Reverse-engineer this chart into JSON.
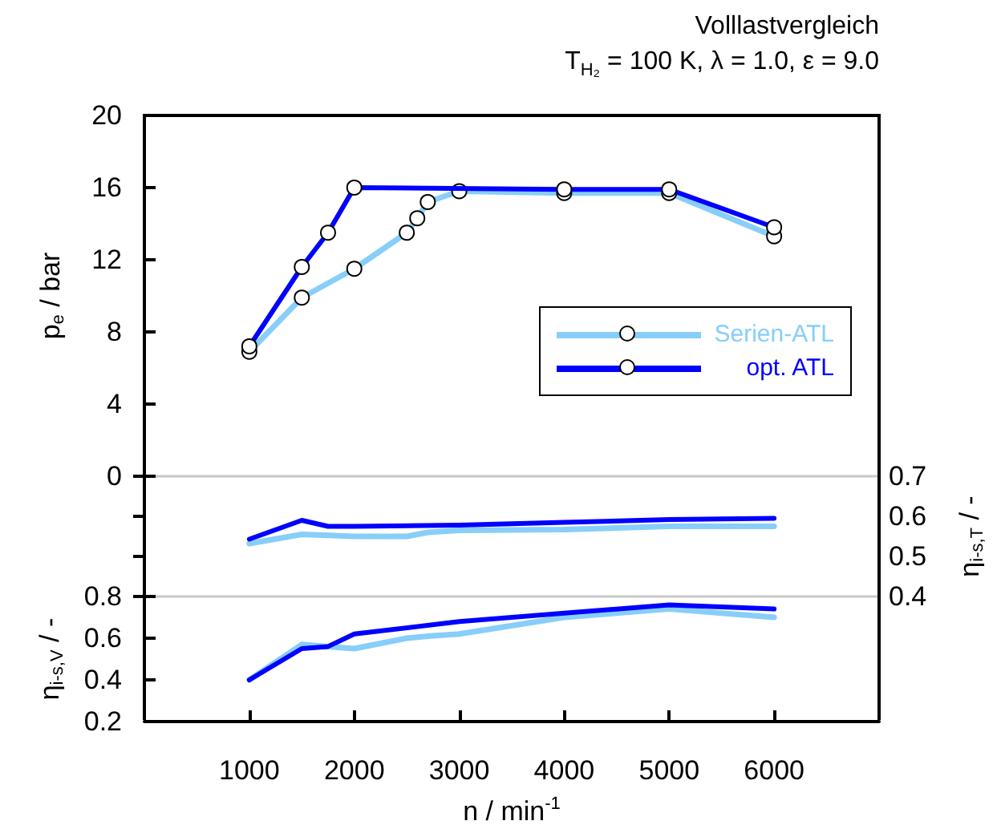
{
  "chart_data": [
    {
      "type": "line",
      "title": "Volllastvergleich",
      "subtitle": "T$_{H₂}$ = 100 K, λ = 1.0, ε = 9.0",
      "ylabel": "p$_{e}$ / bar",
      "xlim": [
        0,
        7000
      ],
      "xticks": [
        1000,
        2000,
        3000,
        4000,
        5000,
        6000
      ],
      "ylim": [
        0,
        20
      ],
      "yticks": [
        0,
        4,
        8,
        12,
        16,
        20
      ],
      "tick_labels": "y",
      "legend": "bottom right",
      "marker": "circle",
      "line_style": "solid",
      "series": [
        {
          "name": "Serien-ATL",
          "color": "#87cefa",
          "x": [
            1000,
            1500,
            2000,
            2500,
            2600,
            2700,
            3000,
            4000,
            5000,
            6000
          ],
          "values": [
            6.9,
            9.9,
            11.5,
            13.5,
            14.3,
            15.2,
            15.8,
            15.7,
            15.7,
            13.3
          ]
        },
        {
          "name": "opt. ATL",
          "color": "#0000ff",
          "x": [
            1000,
            1500,
            1750,
            2000,
            4000,
            5000,
            6000
          ],
          "values": [
            7.2,
            11.6,
            13.5,
            16.0,
            15.9,
            15.9,
            13.8
          ]
        }
      ]
    },
    {
      "type": "line",
      "y2label": "η$_{i-s,T}$ / -",
      "xlim": [
        0,
        7000
      ],
      "xticks": [
        1000,
        2000,
        3000,
        4000,
        5000,
        6000
      ],
      "y2lim": [
        0.4,
        0.7
      ],
      "y2ticks": [
        0.4,
        0.5,
        0.6,
        0.7
      ],
      "tick_labels": "y",
      "marker": "none",
      "line_style": "solid",
      "series": [
        {
          "color": "#87cefa",
          "axis": "y2",
          "x": [
            1000,
            1500,
            2000,
            2500,
            2700,
            3000,
            4000,
            5000,
            6000
          ],
          "values": [
            0.532,
            0.555,
            0.55,
            0.55,
            0.56,
            0.565,
            0.567,
            0.575,
            0.575
          ]
        },
        {
          "color": "#0000ff",
          "axis": "y2",
          "x": [
            1000,
            1500,
            1750,
            2000,
            3000,
            4000,
            5000,
            6000
          ],
          "values": [
            0.543,
            0.59,
            0.575,
            0.575,
            0.578,
            0.585,
            0.592,
            0.595
          ]
        }
      ]
    },
    {
      "type": "line",
      "xlabel": "n / min$^{-1}$",
      "ylabel": "η$_{i-s,V}$ / -",
      "xlim": [
        0,
        7000
      ],
      "xticks": [
        1000,
        2000,
        3000,
        4000,
        5000,
        6000
      ],
      "ylim": [
        0.2,
        0.8
      ],
      "yticks": [
        0.2,
        0.4,
        0.6,
        0.8
      ],
      "marker": "none",
      "line_style": "solid",
      "series": [
        {
          "color": "#87cefa",
          "x": [
            1000,
            1500,
            1750,
            2000,
            2500,
            2700,
            3000,
            4000,
            5000,
            6000
          ],
          "values": [
            0.4,
            0.57,
            0.56,
            0.55,
            0.6,
            0.61,
            0.62,
            0.7,
            0.74,
            0.7
          ]
        },
        {
          "color": "#0000ff",
          "x": [
            1000,
            1500,
            1750,
            2000,
            3000,
            4000,
            5000,
            6000
          ],
          "values": [
            0.4,
            0.55,
            0.56,
            0.62,
            0.68,
            0.72,
            0.76,
            0.74
          ]
        }
      ]
    }
  ]
}
